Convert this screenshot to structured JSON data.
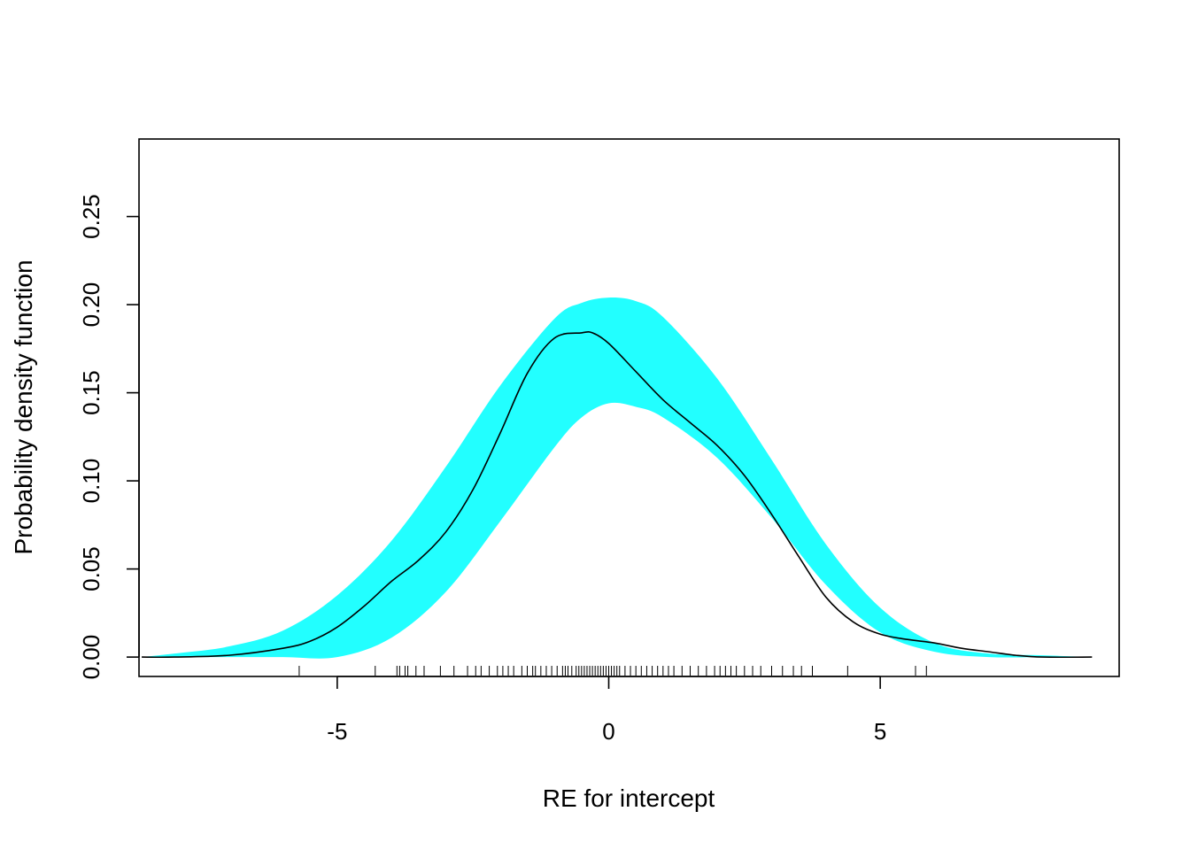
{
  "chart_data": {
    "type": "area",
    "title": "",
    "xlabel": "RE for intercept",
    "ylabel": "Probability density function",
    "xlim": [
      -8.65,
      9.4
    ],
    "ylim": [
      -0.011,
      0.294
    ],
    "x_ticks": [
      -5,
      0,
      5
    ],
    "x_tick_labels": [
      "-5",
      "0",
      "5"
    ],
    "y_ticks": [
      0.0,
      0.05,
      0.1,
      0.15,
      0.2,
      0.25
    ],
    "y_tick_labels": [
      "0.00",
      "0.05",
      "0.10",
      "0.15",
      "0.20",
      "0.25"
    ],
    "grid": false,
    "legend": "none",
    "band_color": "#22ffff",
    "line_color": "#000000",
    "band": {
      "name": "",
      "x": [
        -8.6,
        -8,
        -7,
        -6,
        -5,
        -4,
        -3,
        -2,
        -1,
        -0.5,
        0,
        0.5,
        1,
        2,
        3,
        4,
        5,
        6,
        7,
        8,
        8.9
      ],
      "lower": [
        0.0,
        0.0,
        0.0,
        0.0,
        0.0,
        0.011,
        0.037,
        0.077,
        0.119,
        0.136,
        0.144,
        0.142,
        0.136,
        0.113,
        0.079,
        0.041,
        0.014,
        0.003,
        0.0,
        0.0,
        0.0
      ],
      "upper": [
        0.0,
        0.002,
        0.006,
        0.015,
        0.035,
        0.066,
        0.108,
        0.154,
        0.192,
        0.201,
        0.204,
        0.202,
        0.193,
        0.158,
        0.112,
        0.064,
        0.028,
        0.008,
        0.002,
        0.001,
        0.0
      ]
    },
    "series": [
      {
        "name": "",
        "x": [
          -8.6,
          -8,
          -7,
          -6,
          -5.5,
          -5,
          -4.5,
          -4,
          -3.5,
          -3,
          -2.5,
          -2,
          -1.5,
          -1,
          -0.5,
          -0.3,
          0,
          0.5,
          1,
          1.5,
          2,
          2.5,
          3,
          3.5,
          4,
          4.5,
          5,
          5.5,
          6,
          6.5,
          7,
          7.5,
          8,
          8.9
        ],
        "values": [
          0.0,
          0.0,
          0.001,
          0.005,
          0.009,
          0.017,
          0.029,
          0.043,
          0.055,
          0.071,
          0.095,
          0.127,
          0.161,
          0.181,
          0.184,
          0.184,
          0.178,
          0.162,
          0.146,
          0.133,
          0.12,
          0.103,
          0.081,
          0.057,
          0.034,
          0.02,
          0.013,
          0.01,
          0.008,
          0.005,
          0.003,
          0.001,
          0.0,
          0.0
        ]
      }
    ],
    "rug": [
      -5.7,
      -4.3,
      -3.9,
      -3.85,
      -3.75,
      -3.7,
      -3.55,
      -3.4,
      -3.1,
      -2.85,
      -2.6,
      -2.45,
      -2.35,
      -2.2,
      -2.05,
      -1.95,
      -1.85,
      -1.75,
      -1.6,
      -1.5,
      -1.4,
      -1.35,
      -1.25,
      -1.15,
      -1.05,
      -0.95,
      -0.85,
      -0.8,
      -0.75,
      -0.68,
      -0.6,
      -0.55,
      -0.5,
      -0.45,
      -0.4,
      -0.35,
      -0.3,
      -0.25,
      -0.2,
      -0.15,
      -0.1,
      -0.05,
      0.0,
      0.05,
      0.1,
      0.15,
      0.2,
      0.3,
      0.4,
      0.5,
      0.6,
      0.7,
      0.8,
      0.9,
      1.0,
      1.1,
      1.2,
      1.35,
      1.5,
      1.65,
      1.8,
      1.95,
      2.05,
      2.15,
      2.25,
      2.35,
      2.5,
      2.65,
      2.8,
      3.0,
      3.2,
      3.4,
      3.55,
      3.75,
      4.4,
      5.65,
      5.85
    ]
  }
}
